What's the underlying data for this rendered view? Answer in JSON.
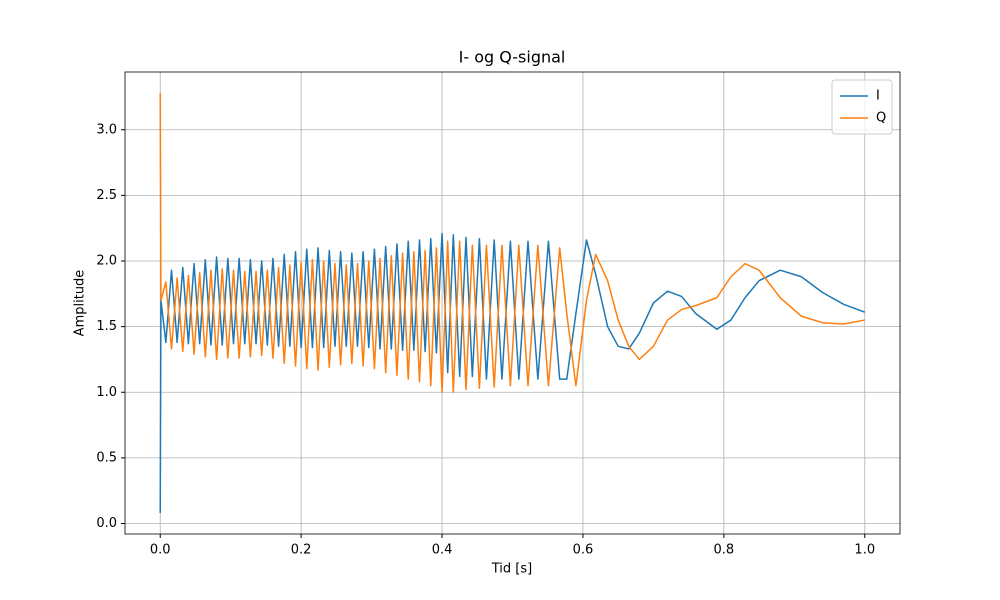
{
  "chart_data": {
    "type": "line",
    "title": "I- og Q-signal",
    "x_label": "Tid [s]",
    "y_label": "Amplitude",
    "x": [
      0,
      0.001,
      0.008,
      0.016,
      0.024,
      0.032,
      0.04,
      0.048,
      0.056,
      0.064,
      0.072,
      0.08,
      0.088,
      0.096,
      0.104,
      0.112,
      0.12,
      0.128,
      0.136,
      0.144,
      0.152,
      0.16,
      0.168,
      0.176,
      0.184,
      0.192,
      0.2,
      0.208,
      0.216,
      0.224,
      0.232,
      0.24,
      0.248,
      0.256,
      0.264,
      0.272,
      0.28,
      0.288,
      0.296,
      0.304,
      0.312,
      0.32,
      0.328,
      0.336,
      0.344,
      0.352,
      0.36,
      0.368,
      0.376,
      0.384,
      0.392,
      0.4,
      0.408,
      0.416,
      0.425,
      0.434,
      0.443,
      0.453,
      0.463,
      0.474,
      0.485,
      0.497,
      0.509,
      0.522,
      0.536,
      0.551,
      0.567,
      0.577,
      0.59,
      0.605,
      0.618,
      0.635,
      0.65,
      0.665,
      0.68,
      0.7,
      0.72,
      0.74,
      0.76,
      0.79,
      0.81,
      0.83,
      0.85,
      0.88,
      0.91,
      0.94,
      0.97,
      1.0
    ],
    "series": [
      {
        "name": "I",
        "color": "#1f77b4",
        "values": [
          0.08,
          1.7,
          1.38,
          1.93,
          1.38,
          1.95,
          1.37,
          1.98,
          1.37,
          2.01,
          1.36,
          2.03,
          1.36,
          2.02,
          1.37,
          2.02,
          1.37,
          2.01,
          1.37,
          2.0,
          1.36,
          2.02,
          1.35,
          2.05,
          1.35,
          2.07,
          1.34,
          2.09,
          1.34,
          2.1,
          1.34,
          2.08,
          1.35,
          2.07,
          1.35,
          2.06,
          1.35,
          2.07,
          1.34,
          2.09,
          1.33,
          2.11,
          1.33,
          2.13,
          1.32,
          2.15,
          1.32,
          2.16,
          1.31,
          2.17,
          1.3,
          2.21,
          1.15,
          2.2,
          1.12,
          2.18,
          1.12,
          2.17,
          1.1,
          2.16,
          1.1,
          2.15,
          1.1,
          2.15,
          1.1,
          2.15,
          1.1,
          1.1,
          1.6,
          2.16,
          1.9,
          1.5,
          1.35,
          1.33,
          1.45,
          1.68,
          1.77,
          1.73,
          1.6,
          1.48,
          1.55,
          1.72,
          1.85,
          1.93,
          1.88,
          1.76,
          1.67,
          1.61
        ]
      },
      {
        "name": "Q",
        "color": "#ff7f0e",
        "values": [
          3.28,
          1.7,
          1.84,
          1.33,
          1.87,
          1.31,
          1.89,
          1.29,
          1.91,
          1.27,
          1.93,
          1.25,
          1.94,
          1.26,
          1.93,
          1.26,
          1.92,
          1.27,
          1.92,
          1.28,
          1.93,
          1.26,
          1.95,
          1.22,
          1.97,
          1.2,
          1.99,
          1.18,
          2.01,
          1.17,
          2.0,
          1.19,
          1.98,
          1.21,
          1.97,
          1.22,
          1.98,
          1.2,
          2.0,
          1.18,
          2.02,
          1.15,
          2.04,
          1.13,
          2.06,
          1.1,
          2.07,
          1.08,
          2.08,
          1.05,
          2.1,
          1.0,
          2.15,
          1.0,
          2.15,
          1.02,
          2.12,
          1.03,
          2.12,
          1.04,
          2.12,
          1.05,
          2.12,
          1.05,
          2.12,
          1.05,
          2.1,
          1.6,
          1.05,
          1.7,
          2.05,
          1.85,
          1.55,
          1.35,
          1.25,
          1.35,
          1.55,
          1.63,
          1.66,
          1.72,
          1.88,
          1.98,
          1.93,
          1.72,
          1.58,
          1.53,
          1.52,
          1.55
        ]
      }
    ],
    "xlim": [
      -0.05,
      1.05
    ],
    "xticks": [
      {
        "value": 0,
        "label": "0.0"
      },
      0.2,
      0.4,
      0.6,
      0.8,
      {
        "value": 1,
        "label": "1.0"
      }
    ],
    "ylim": [
      -0.08,
      3.44
    ],
    "yticks": [
      {
        "value": 0,
        "label": "0.0"
      },
      0.5,
      {
        "value": 1,
        "label": "1.0"
      },
      1.5,
      {
        "value": 2,
        "label": "2.0"
      },
      2.5,
      {
        "value": 3,
        "label": "3.0"
      }
    ],
    "grid": true,
    "legend": "upper right"
  }
}
